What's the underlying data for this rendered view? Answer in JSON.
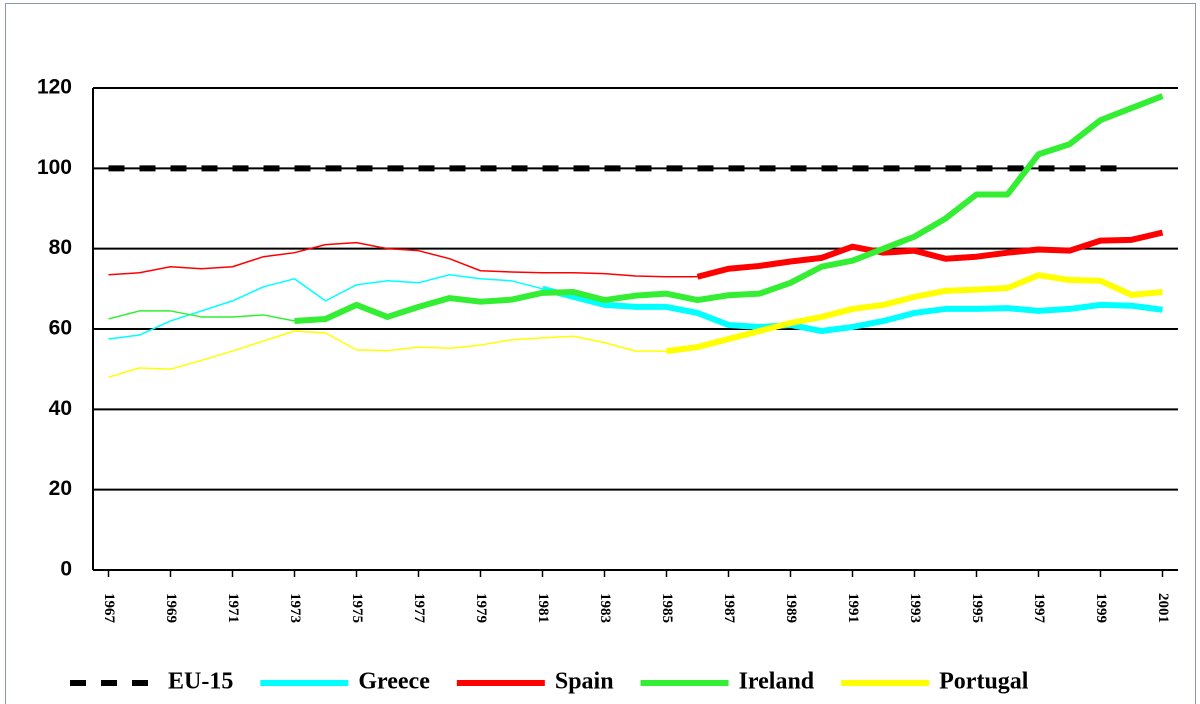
{
  "chart_data": {
    "type": "line",
    "x": [
      1967,
      1968,
      1969,
      1970,
      1971,
      1972,
      1973,
      1974,
      1975,
      1976,
      1977,
      1978,
      1979,
      1980,
      1981,
      1982,
      1983,
      1984,
      1985,
      1986,
      1987,
      1988,
      1989,
      1990,
      1991,
      1992,
      1993,
      1994,
      1995,
      1996,
      1997,
      1998,
      1999,
      2000,
      2001
    ],
    "xlim": [
      1966.5,
      2001.5
    ],
    "xticks": [
      1967,
      1969,
      1971,
      1973,
      1975,
      1977,
      1979,
      1981,
      1983,
      1985,
      1987,
      1989,
      1991,
      1993,
      1995,
      1997,
      1999,
      2001
    ],
    "ylim": [
      0,
      120
    ],
    "yticks": [
      0,
      20,
      40,
      60,
      80,
      100,
      120
    ],
    "grid": true,
    "legend": "bottom",
    "series": [
      {
        "name": "EU-15",
        "color": "#000000",
        "dashed": true,
        "values": [
          100,
          100,
          100,
          100,
          100,
          100,
          100,
          100,
          100,
          100,
          100,
          100,
          100,
          100,
          100,
          100,
          100,
          100,
          100,
          100,
          100,
          100,
          100,
          100,
          100,
          100,
          100,
          100,
          100,
          100,
          100,
          100,
          100,
          100,
          null
        ]
      },
      {
        "name": "Greece",
        "color": "#00ffff",
        "thick_from": 1981,
        "values": [
          57.5,
          58.5,
          62,
          64.5,
          67,
          70.5,
          72.5,
          67,
          71,
          72,
          71.5,
          73.5,
          72.5,
          72,
          70,
          68,
          66,
          65.5,
          65.5,
          64,
          61,
          60.5,
          61,
          59.5,
          60.5,
          62,
          64,
          65,
          65,
          65.2,
          64.5,
          65,
          66,
          65.8,
          64.8
        ]
      },
      {
        "name": "Spain",
        "color": "#ff0000",
        "thick_from": 1986,
        "values": [
          73.5,
          74,
          75.5,
          75,
          75.5,
          78,
          79,
          81,
          81.5,
          80,
          79.5,
          77.5,
          74.5,
          74.2,
          74,
          74,
          73.8,
          73.2,
          73,
          73,
          75,
          75.7,
          76.8,
          77.7,
          80.5,
          79,
          79.5,
          77.5,
          78,
          79,
          79.8,
          79.5,
          82,
          82.2,
          84
        ]
      },
      {
        "name": "Ireland",
        "color": "#33ee33",
        "thick_from": 1973,
        "values": [
          62.5,
          64.5,
          64.5,
          63,
          63,
          63.5,
          62,
          62.5,
          66,
          63,
          65.5,
          67.7,
          66.8,
          67.3,
          69,
          69.2,
          67.2,
          68.3,
          68.8,
          67.2,
          68.4,
          68.8,
          71.5,
          75.5,
          77,
          80,
          83,
          87.5,
          93.5,
          93.5,
          103.5,
          106,
          112,
          115,
          118
        ]
      },
      {
        "name": "Portugal",
        "color": "#ffff00",
        "thick_from": 1985,
        "values": [
          48,
          50.3,
          50,
          52.2,
          54.5,
          57,
          59.5,
          59,
          54.8,
          54.6,
          55.5,
          55.2,
          56,
          57.3,
          57.8,
          58.2,
          56.6,
          54.5,
          54.5,
          55.5,
          57.5,
          59.5,
          61.5,
          63,
          65,
          66,
          68,
          69.5,
          69.8,
          70.2,
          73.4,
          72.2,
          72,
          68.5,
          69.2
        ]
      }
    ]
  }
}
